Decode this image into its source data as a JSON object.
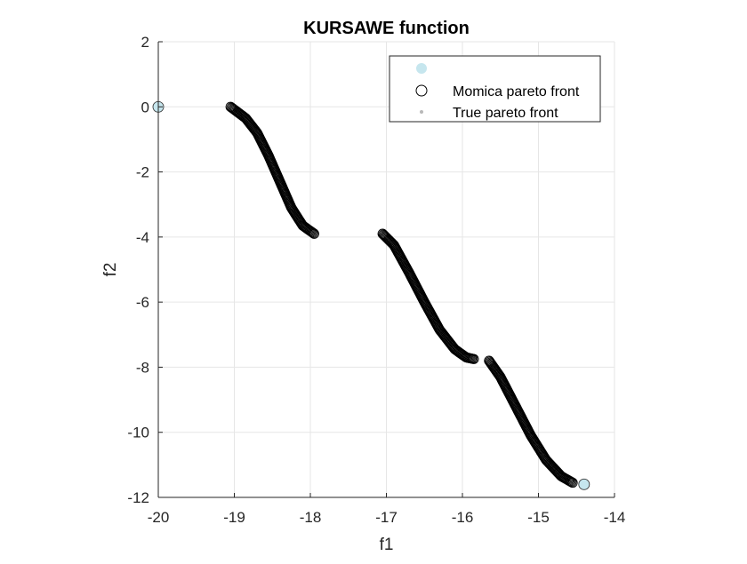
{
  "chart_data": {
    "type": "scatter",
    "title": "KURSAWE function",
    "xlabel": "f1",
    "ylabel": "f2",
    "xlim": [
      -20,
      -14
    ],
    "ylim": [
      -12,
      2
    ],
    "xticks": [
      -20,
      -19,
      -18,
      -17,
      -16,
      -15,
      -14
    ],
    "yticks": [
      2,
      0,
      -2,
      -4,
      -6,
      -8,
      -10,
      -12
    ],
    "grid": true,
    "legend_position": "top-right",
    "colors": {
      "highlight_fill": "#c6e6ee",
      "momica_stroke": "#000000",
      "true_front": "#b8b8b8",
      "axis": "#262626",
      "grid": "#e6e6e6"
    },
    "legend": [
      "",
      "Momica pareto front",
      "True pareto front"
    ],
    "series": [
      {
        "marker": "filled-circle",
        "points": [
          [
            -20.0,
            0.0
          ],
          [
            -14.4,
            -11.6
          ]
        ]
      },
      {
        "name": "Momica pareto front",
        "marker": "open-circle",
        "segments": [
          [
            [
              -19.05,
              0.0
            ],
            [
              -18.85,
              -0.35
            ],
            [
              -18.7,
              -0.8
            ],
            [
              -18.55,
              -1.5
            ],
            [
              -18.4,
              -2.3
            ],
            [
              -18.25,
              -3.1
            ],
            [
              -18.1,
              -3.65
            ],
            [
              -17.95,
              -3.9
            ]
          ],
          [
            [
              -17.05,
              -3.9
            ],
            [
              -16.9,
              -4.25
            ],
            [
              -16.7,
              -5.1
            ],
            [
              -16.5,
              -6.0
            ],
            [
              -16.3,
              -6.85
            ],
            [
              -16.1,
              -7.45
            ],
            [
              -15.95,
              -7.7
            ],
            [
              -15.85,
              -7.75
            ]
          ],
          [
            [
              -15.65,
              -7.8
            ],
            [
              -15.5,
              -8.3
            ],
            [
              -15.3,
              -9.2
            ],
            [
              -15.1,
              -10.1
            ],
            [
              -14.9,
              -10.85
            ],
            [
              -14.7,
              -11.35
            ],
            [
              -14.55,
              -11.55
            ]
          ]
        ]
      },
      {
        "name": "True pareto front",
        "marker": "dot",
        "segments": [
          [
            [
              -19.05,
              0.0
            ],
            [
              -18.85,
              -0.35
            ],
            [
              -18.7,
              -0.8
            ],
            [
              -18.55,
              -1.5
            ],
            [
              -18.4,
              -2.3
            ],
            [
              -18.25,
              -3.1
            ],
            [
              -18.1,
              -3.65
            ],
            [
              -17.95,
              -3.9
            ]
          ],
          [
            [
              -17.05,
              -3.9
            ],
            [
              -16.9,
              -4.25
            ],
            [
              -16.7,
              -5.1
            ],
            [
              -16.5,
              -6.0
            ],
            [
              -16.3,
              -6.85
            ],
            [
              -16.1,
              -7.45
            ],
            [
              -15.95,
              -7.7
            ],
            [
              -15.85,
              -7.75
            ]
          ],
          [
            [
              -15.65,
              -7.8
            ],
            [
              -15.5,
              -8.3
            ],
            [
              -15.3,
              -9.2
            ],
            [
              -15.1,
              -10.1
            ],
            [
              -14.9,
              -10.85
            ],
            [
              -14.7,
              -11.35
            ],
            [
              -14.55,
              -11.55
            ]
          ]
        ]
      }
    ]
  }
}
